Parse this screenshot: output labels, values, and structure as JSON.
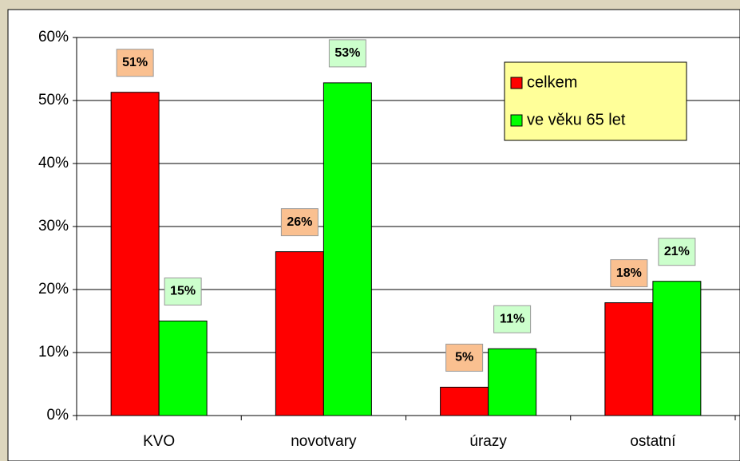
{
  "chart_data": {
    "type": "bar",
    "categories": [
      "KVO",
      "novotvary",
      "úrazy",
      "ostatní"
    ],
    "series": [
      {
        "name": "celkem",
        "color": "#ff0000",
        "label_color": "#fac090",
        "values": [
          51.3,
          26,
          4.5,
          17.9
        ],
        "value_labels": [
          "51%",
          "26%",
          "5%",
          "18%"
        ]
      },
      {
        "name": "ve věku 65 let",
        "color": "#00ff00",
        "label_color": "#ccffcc",
        "values": [
          15,
          52.8,
          10.6,
          21.3
        ],
        "value_labels": [
          "15%",
          "53%",
          "11%",
          "21%"
        ]
      }
    ],
    "ylim": [
      0,
      60
    ],
    "yticks": [
      {
        "value": 0,
        "label": "0%"
      },
      {
        "value": 10,
        "label": "10%"
      },
      {
        "value": 20,
        "label": "20%"
      },
      {
        "value": 30,
        "label": "30%"
      },
      {
        "value": 40,
        "label": "40%"
      },
      {
        "value": 50,
        "label": "50%"
      },
      {
        "value": 60,
        "label": "60%"
      }
    ],
    "grid": true,
    "legend": "top-right",
    "legend_color": "#ffff99"
  }
}
